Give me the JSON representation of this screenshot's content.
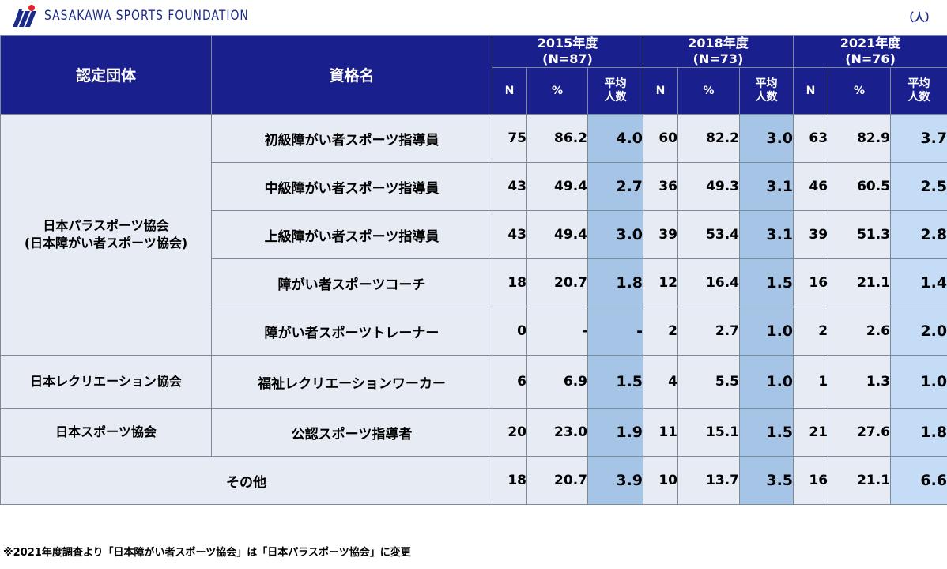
{
  "header": {
    "logo_text": "SASAKAWA SPORTS FOUNDATION",
    "unit": "（人）"
  },
  "colors": {
    "header_bg": "#1a1f8e",
    "cell_bg": "#e6ebf4",
    "avg_bg": "#a6c4e6",
    "avg_2021_bg": "#c4dcf6",
    "logo_blue": "#1a2a8a",
    "logo_red": "#e0202a"
  },
  "table": {
    "col_org": "認定団体",
    "col_qual": "資格名",
    "years": [
      {
        "label": "2015年度",
        "n": "(N=87)"
      },
      {
        "label": "2018年度",
        "n": "(N=73)"
      },
      {
        "label": "2021年度",
        "n": "(N=76)"
      }
    ],
    "sub_n": "N",
    "sub_pct": "%",
    "sub_avg_1": "平均",
    "sub_avg_2": "人数",
    "orgs": [
      {
        "line1": "日本パラスポーツ協会",
        "line2": "(日本障がい者スポーツ協会)"
      },
      {
        "line1": "日本レクリエーション協会"
      },
      {
        "line1": "日本スポーツ協会"
      }
    ],
    "rows": [
      {
        "qual": "初級障がい者スポーツ指導員",
        "v": [
          "75",
          "86.2",
          "4.0",
          "60",
          "82.2",
          "3.0",
          "63",
          "82.9",
          "3.7"
        ]
      },
      {
        "qual": "中級障がい者スポーツ指導員",
        "v": [
          "43",
          "49.4",
          "2.7",
          "36",
          "49.3",
          "3.1",
          "46",
          "60.5",
          "2.5"
        ]
      },
      {
        "qual": "上級障がい者スポーツ指導員",
        "v": [
          "43",
          "49.4",
          "3.0",
          "39",
          "53.4",
          "3.1",
          "39",
          "51.3",
          "2.8"
        ]
      },
      {
        "qual": "障がい者スポーツコーチ",
        "v": [
          "18",
          "20.7",
          "1.8",
          "12",
          "16.4",
          "1.5",
          "16",
          "21.1",
          "1.4"
        ]
      },
      {
        "qual": "障がい者スポーツトレーナー",
        "v": [
          "0",
          "-",
          "-",
          "2",
          "2.7",
          "1.0",
          "2",
          "2.6",
          "2.0"
        ]
      },
      {
        "qual": "福祉レクリエーションワーカー",
        "v": [
          "6",
          "6.9",
          "1.5",
          "4",
          "5.5",
          "1.0",
          "1",
          "1.3",
          "1.0"
        ]
      },
      {
        "qual": "公認スポーツ指導者",
        "v": [
          "20",
          "23.0",
          "1.9",
          "11",
          "15.1",
          "1.5",
          "21",
          "27.6",
          "1.8"
        ]
      },
      {
        "qual": "その他",
        "v": [
          "18",
          "20.7",
          "3.9",
          "10",
          "13.7",
          "3.5",
          "16",
          "21.1",
          "6.6"
        ]
      }
    ]
  },
  "footnote": "※2021年度調査より「日本障がい者スポーツ協会」は「日本パラスポーツ協会」に変更"
}
